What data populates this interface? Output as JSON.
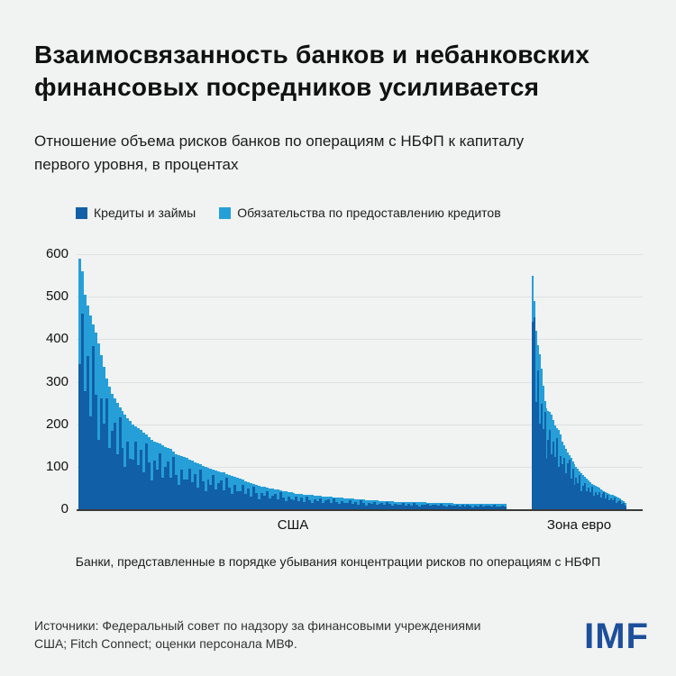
{
  "header": {
    "title_lines": [
      "Взаимосвязанность банков и небанковских",
      "финансовых посредников усиливается"
    ],
    "subtitle_lines": [
      "Отношение объема рисков банков по операциям с НБФП к капиталу",
      "первого уровня, в процентах"
    ]
  },
  "chart_data": {
    "type": "bar",
    "stacked": true,
    "title": "Отношение объема рисков банков по операциям с НБФП к капиталу первого уровня, в процентах",
    "ylim": [
      0,
      600
    ],
    "yticks": [
      0,
      100,
      200,
      300,
      400,
      500,
      600
    ],
    "grid": true,
    "legend_position": "top",
    "legend": [
      {
        "label": "Кредиты и займы",
        "color": "#115fa6"
      },
      {
        "label": "Обязательства по предоставлению кредитов",
        "color": "#269fd8"
      }
    ],
    "note": "Банки, представленные в порядке убывания концентрации рисков по операциям с НБФП",
    "groups": [
      {
        "label": "США",
        "totals": [
          590,
          560,
          505,
          480,
          455,
          435,
          415,
          390,
          362,
          335,
          308,
          288,
          272,
          260,
          250,
          240,
          231,
          222,
          214,
          207,
          200,
          195,
          190,
          186,
          180,
          175,
          170,
          163,
          158,
          156,
          154,
          150,
          147,
          145,
          143,
          136,
          130,
          128,
          126,
          123,
          120,
          117,
          114,
          111,
          108,
          105,
          102,
          100,
          98,
          96,
          94,
          92,
          90,
          88,
          86,
          83,
          81,
          79,
          76,
          74,
          72,
          69,
          66,
          64,
          62,
          60,
          58,
          56,
          54,
          52,
          50,
          49,
          48,
          47,
          46,
          44,
          43,
          42,
          41,
          40,
          38,
          37,
          36,
          36,
          35,
          34,
          34,
          33,
          32,
          32,
          31,
          30,
          30,
          29,
          29,
          28,
          28,
          27,
          27,
          26,
          26,
          25,
          25,
          24,
          24,
          23,
          23,
          22,
          22,
          21,
          21,
          21,
          20,
          20,
          20,
          19,
          19,
          19,
          18,
          18,
          18,
          18,
          17,
          17,
          17,
          17,
          16,
          16,
          16,
          16,
          15,
          15,
          15,
          15,
          15,
          14,
          14,
          14,
          14,
          14,
          13,
          13,
          13,
          13,
          13,
          13,
          13,
          12,
          12,
          12,
          12,
          12,
          12,
          12,
          12,
          12,
          12,
          12,
          12,
          12
        ],
        "loan_share_pattern": [
          0.58,
          0.82,
          0.55,
          0.75,
          0.48,
          0.88,
          0.65,
          0.42,
          0.72,
          0.6,
          0.85,
          0.5,
          0.68,
          0.78,
          0.52,
          0.9,
          0.62,
          0.45,
          0.74,
          0.57
        ]
      },
      {
        "label": "Зона евро",
        "totals": [
          550,
          490,
          420,
          385,
          365,
          330,
          290,
          255,
          238,
          232,
          228,
          222,
          210,
          198,
          190,
          186,
          175,
          160,
          150,
          142,
          134,
          127,
          120,
          113,
          106,
          100,
          95,
          90,
          85,
          80,
          76,
          72,
          68,
          64,
          60,
          58,
          55,
          52,
          50,
          47,
          45,
          43,
          41,
          39,
          37,
          35,
          33,
          31,
          29,
          27,
          25,
          22,
          19,
          15
        ],
        "loan_share_pattern": [
          0.8,
          0.92,
          0.6,
          0.85,
          0.55,
          0.75,
          0.65,
          0.9,
          0.5,
          0.7,
          0.82,
          0.58,
          0.76,
          0.62,
          0.88,
          0.54,
          0.72,
          0.66,
          0.8,
          0.6
        ]
      }
    ]
  },
  "footer": {
    "sources_lines": [
      "Источники: Федеральный совет по надзору за финансовыми учреждениями",
      "США; Fitch Connect; оценки персонала МВФ."
    ],
    "logo": "IMF"
  }
}
